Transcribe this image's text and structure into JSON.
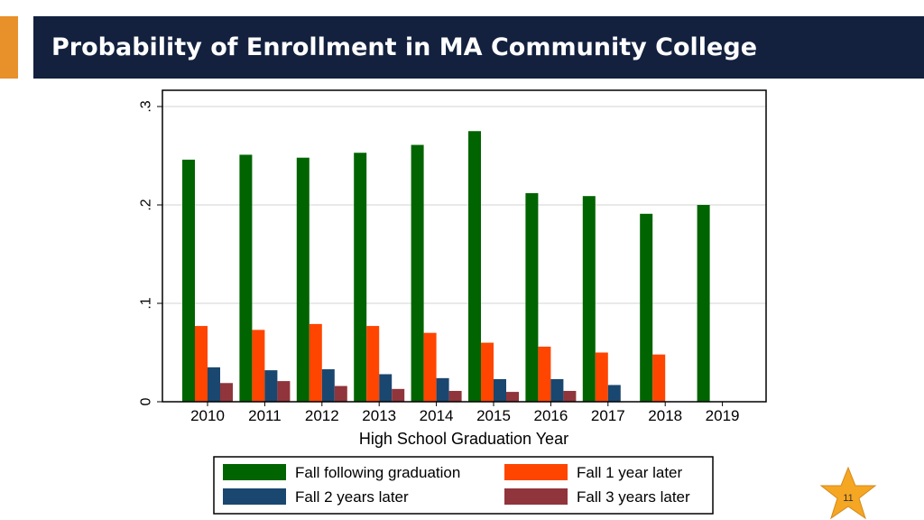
{
  "slide": {
    "title": "Probability of Enrollment in MA Community College",
    "page_number": "11",
    "colors": {
      "title_bar": "#13213f",
      "accent": "#e8902a",
      "star": "#f5a623"
    }
  },
  "chart_data": {
    "type": "bar",
    "xlabel": "High School Graduation Year",
    "ylabel": "",
    "ylim": [
      0,
      0.3
    ],
    "yticks": [
      {
        "value": 0,
        "label": "0"
      },
      {
        "value": 0.1,
        "label": ".1"
      },
      {
        "value": 0.2,
        "label": ".2"
      },
      {
        "value": 0.3,
        "label": ".3"
      }
    ],
    "grid": true,
    "legend_position": "bottom",
    "categories": [
      "2010",
      "2011",
      "2012",
      "2013",
      "2014",
      "2015",
      "2016",
      "2017",
      "2018",
      "2019"
    ],
    "series": [
      {
        "name": "Fall following graduation",
        "color": "#006400",
        "values": [
          0.246,
          0.251,
          0.248,
          0.253,
          0.261,
          0.275,
          0.212,
          0.209,
          0.191,
          0.2
        ]
      },
      {
        "name": "Fall 1 year later",
        "color": "#ff4500",
        "values": [
          0.077,
          0.073,
          0.079,
          0.077,
          0.07,
          0.06,
          0.056,
          0.05,
          0.048,
          null
        ]
      },
      {
        "name": "Fall 2 years later",
        "color": "#1a476f",
        "values": [
          0.035,
          0.032,
          0.033,
          0.028,
          0.024,
          0.023,
          0.023,
          0.017,
          null,
          null
        ]
      },
      {
        "name": "Fall 3 years later",
        "color": "#90353b",
        "values": [
          0.019,
          0.021,
          0.016,
          0.013,
          0.011,
          0.01,
          0.011,
          null,
          null,
          null
        ]
      }
    ]
  }
}
